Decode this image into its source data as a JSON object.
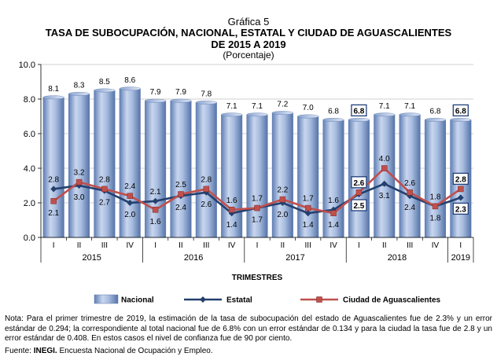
{
  "header": {
    "chart_label": "Gráfica 5",
    "title_line1": "TASA DE SUBOCUPACIÓN,  NACIONAL,  ESTATAL  Y CIUDAD DE AGUASCALIENTES",
    "title_line2": "DE 2015  A 2019",
    "subtitle": "(Porcentaje)"
  },
  "chart_data": {
    "type": "bar",
    "xlabel": "TRIMESTRES",
    "ylabel": "",
    "ylim": [
      0,
      10
    ],
    "yticks": [
      "0.0",
      "2.0",
      "4.0",
      "6.0",
      "8.0",
      "10.0"
    ],
    "categories": [
      "I",
      "II",
      "III",
      "IV",
      "I",
      "II",
      "III",
      "IV",
      "I",
      "II",
      "III",
      "IV",
      "I",
      "II",
      "III",
      "IV",
      "I"
    ],
    "year_groups": [
      {
        "label": "2015",
        "start": 0,
        "end": 3
      },
      {
        "label": "2016",
        "start": 4,
        "end": 7
      },
      {
        "label": "2017",
        "start": 8,
        "end": 11
      },
      {
        "label": "2018",
        "start": 12,
        "end": 15
      },
      {
        "label": "2019",
        "start": 16,
        "end": 16
      }
    ],
    "series": [
      {
        "name": "Nacional",
        "kind": "bar",
        "color": "#8aa4d0",
        "values": [
          8.1,
          8.3,
          8.5,
          8.6,
          7.9,
          7.9,
          7.8,
          7.1,
          7.1,
          7.2,
          7.0,
          6.8,
          6.8,
          7.1,
          7.1,
          6.8,
          6.8
        ],
        "labels": [
          "8.1",
          "8.3",
          "8.5",
          "8.6",
          "7.9",
          "7.9",
          "7.8",
          "7.1",
          "7.1",
          "7.2",
          "7.0",
          "6.8",
          "6.8",
          "7.1",
          "7.1",
          "6.8",
          "6.8"
        ]
      },
      {
        "name": "Estatal",
        "kind": "line",
        "color": "#24406e",
        "values": [
          2.8,
          3.0,
          2.7,
          2.0,
          2.1,
          2.4,
          2.6,
          1.4,
          1.7,
          2.0,
          1.4,
          1.6,
          2.5,
          3.1,
          2.4,
          1.8,
          2.3
        ],
        "labels": [
          "2.8",
          "3.0",
          "2.7",
          "2.0",
          "2.1",
          "2.4",
          "2.6",
          "1.4",
          "1.7",
          "2.0",
          "1.4",
          "1.6",
          "2.5",
          "3.1",
          "2.4",
          "1.8",
          "2.3"
        ]
      },
      {
        "name": "Ciudad de Aguascalientes",
        "kind": "line",
        "color": "#c0504d",
        "values": [
          2.1,
          3.2,
          2.8,
          2.4,
          1.6,
          2.5,
          2.8,
          1.6,
          1.7,
          2.2,
          1.7,
          1.4,
          2.6,
          4.0,
          2.6,
          1.8,
          2.8
        ],
        "labels": [
          "2.1",
          "3.2",
          "2.8",
          "2.4",
          "1.6",
          "2.5",
          "2.8",
          "1.6",
          "1.7",
          "2.2",
          "1.7",
          "1.4",
          "2.6",
          "4.0",
          "2.6",
          "1.8",
          "2.8"
        ]
      }
    ],
    "boxed_points": [
      {
        "series": "Nacional",
        "index": 12
      },
      {
        "series": "Nacional",
        "index": 16
      },
      {
        "series": "Estatal",
        "index": 12
      },
      {
        "series": "Estatal",
        "index": 16
      },
      {
        "series": "Ciudad de Aguascalientes",
        "index": 12
      },
      {
        "series": "Ciudad de Aguascalientes",
        "index": 16
      }
    ],
    "legend": {
      "position": "bottom",
      "entries": [
        "Nacional",
        "Estatal",
        "Ciudad de Aguascalientes"
      ]
    }
  },
  "footer": {
    "note": "Nota: Para el primer trimestre de 2019, la estimación de la tasa de subocupación del estado de Aguascalientes fue de 2.3% y un error estándar de 0.294; la correspondiente al total nacional fue de 6.8% con un error estándar de 0.134 y para la ciudad la tasa fue de 2.8 y un error estándar de 0.408. En estos casos el nivel de confianza fue de 90 por ciento.",
    "source_prefix": "Fuente: ",
    "source_bold": "INEGI.",
    "source_rest": " Encuesta Nacional de Ocupación y Empleo."
  }
}
